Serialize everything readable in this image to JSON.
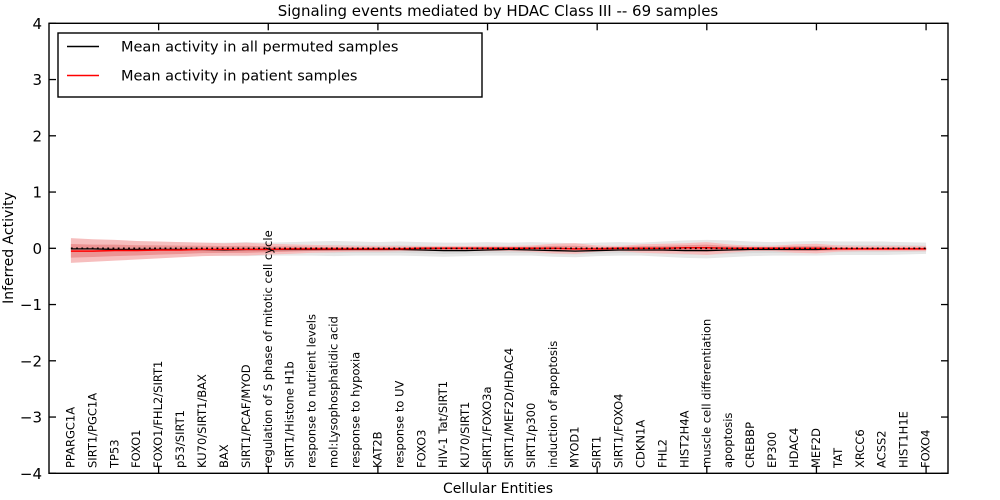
{
  "chart_data": {
    "type": "line",
    "title": "Signaling events mediated by HDAC Class III -- 69 samples",
    "xlabel": "Cellular Entities",
    "ylabel": "Inferred Activity",
    "ylim": [
      -4,
      4
    ],
    "xlim": [
      0,
      41
    ],
    "grid": false,
    "legend_position": "upper left",
    "y_ticks": [
      4,
      3,
      2,
      1,
      0,
      -1,
      -2,
      -3,
      -4
    ],
    "y_tick_labels": [
      "4",
      "3",
      "2",
      "1",
      "0",
      "−1",
      "−2",
      "−3",
      "−4"
    ],
    "x_major_ticks": [
      5,
      10,
      15,
      20,
      25,
      30,
      35,
      40
    ],
    "categories": [
      "PPARGC1A",
      "SIRT1/PGC1A",
      "TP53",
      "FOXO1",
      "FOXO1/FHL2/SIRT1",
      "p53/SIRT1",
      "KU70/SIRT1/BAX",
      "BAX",
      "SIRT1/PCAF/MYOD",
      "regulation of S phase of mitotic cell cycle",
      "SIRT1/Histone H1b",
      "response to nutrient levels",
      "mol:Lysophosphatidic acid",
      "response to hypoxia",
      "KAT2B",
      "response to UV",
      "FOXO3",
      "HIV-1 Tat/SIRT1",
      "KU70/SIRT1",
      "SIRT1/FOXO3a",
      "SIRT1/MEF2D/HDAC4",
      "SIRT1/p300",
      "induction of apoptosis",
      "MYOD1",
      "SIRT1",
      "SIRT1/FOXO4",
      "CDKN1A",
      "FHL2",
      "HIST2H4A",
      "muscle cell differentiation",
      "apoptosis",
      "CREBBP",
      "EP300",
      "HDAC4",
      "MEF2D",
      "TAT",
      "XRCC6",
      "ACSS2",
      "HIST1H1E",
      "FOXO4"
    ],
    "zero_line": {
      "y": 0,
      "style": "dotted",
      "color": "#000000"
    },
    "series": [
      {
        "name": "Mean activity in all permuted samples",
        "color": "#000000",
        "band_color": "#e7e7e7",
        "band_inner_color": "#d9d9d9",
        "mean": [
          -0.01,
          -0.01,
          -0.02,
          -0.02,
          -0.02,
          -0.02,
          -0.02,
          -0.03,
          -0.02,
          -0.02,
          -0.02,
          -0.02,
          -0.02,
          -0.02,
          -0.02,
          -0.02,
          -0.03,
          -0.04,
          -0.04,
          -0.03,
          -0.02,
          -0.03,
          -0.04,
          -0.05,
          -0.04,
          -0.03,
          -0.03,
          -0.03,
          -0.04,
          -0.04,
          -0.03,
          -0.02,
          -0.02,
          -0.02,
          -0.02,
          -0.01,
          -0.01,
          -0.01,
          -0.01,
          -0.01
        ],
        "band_upper": [
          0.09,
          0.09,
          0.1,
          0.1,
          0.1,
          0.11,
          0.1,
          0.1,
          0.11,
          0.1,
          0.11,
          0.12,
          0.13,
          0.12,
          0.11,
          0.12,
          0.11,
          0.1,
          0.1,
          0.11,
          0.1,
          0.11,
          0.1,
          0.09,
          0.1,
          0.11,
          0.1,
          0.12,
          0.14,
          0.15,
          0.14,
          0.12,
          0.11,
          0.12,
          0.13,
          0.12,
          0.12,
          0.12,
          0.11,
          0.1
        ],
        "band_lower": [
          -0.11,
          -0.12,
          -0.12,
          -0.13,
          -0.13,
          -0.14,
          -0.13,
          -0.14,
          -0.14,
          -0.13,
          -0.13,
          -0.13,
          -0.14,
          -0.13,
          -0.13,
          -0.13,
          -0.14,
          -0.15,
          -0.14,
          -0.13,
          -0.13,
          -0.13,
          -0.15,
          -0.16,
          -0.14,
          -0.13,
          -0.13,
          -0.15,
          -0.17,
          -0.18,
          -0.16,
          -0.14,
          -0.13,
          -0.13,
          -0.13,
          -0.12,
          -0.12,
          -0.12,
          -0.11,
          -0.1
        ]
      },
      {
        "name": "Mean activity in patient samples",
        "color": "#ff0000",
        "band_color": "#f6bebe",
        "band_inner_color": "#ec9494",
        "mean": [
          -0.05,
          -0.05,
          -0.04,
          -0.04,
          -0.03,
          -0.03,
          -0.02,
          -0.02,
          -0.02,
          -0.02,
          -0.01,
          -0.01,
          -0.01,
          -0.01,
          -0.01,
          -0.01,
          0.0,
          0.0,
          0.0,
          0.0,
          0.0,
          0.0,
          0.0,
          -0.01,
          -0.01,
          0.0,
          0.0,
          0.0,
          0.01,
          0.01,
          0.0,
          0.0,
          0.0,
          0.0,
          0.0,
          -0.01,
          -0.01,
          -0.01,
          -0.01,
          -0.01
        ],
        "band_upper": [
          0.18,
          0.16,
          0.15,
          0.13,
          0.12,
          0.11,
          0.1,
          0.09,
          0.1,
          0.08,
          0.07,
          0.06,
          0.05,
          0.04,
          0.04,
          0.04,
          0.04,
          0.04,
          0.04,
          0.04,
          0.04,
          0.05,
          0.08,
          0.09,
          0.05,
          0.04,
          0.07,
          0.08,
          0.09,
          0.11,
          0.07,
          0.04,
          0.04,
          0.07,
          0.08,
          0.05,
          0.04,
          0.04,
          0.04,
          0.04
        ],
        "band_lower": [
          -0.26,
          -0.24,
          -0.22,
          -0.2,
          -0.18,
          -0.16,
          -0.14,
          -0.13,
          -0.13,
          -0.11,
          -0.1,
          -0.08,
          -0.07,
          -0.06,
          -0.06,
          -0.05,
          -0.05,
          -0.05,
          -0.05,
          -0.05,
          -0.05,
          -0.06,
          -0.09,
          -0.1,
          -0.06,
          -0.05,
          -0.08,
          -0.09,
          -0.1,
          -0.12,
          -0.08,
          -0.05,
          -0.05,
          -0.08,
          -0.09,
          -0.06,
          -0.05,
          -0.05,
          -0.05,
          -0.05
        ]
      }
    ]
  }
}
